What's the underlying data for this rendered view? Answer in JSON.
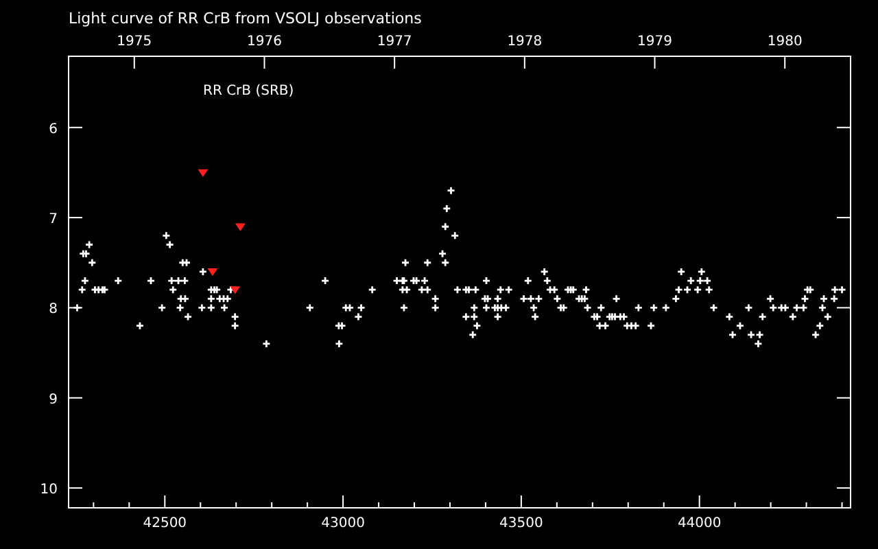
{
  "chart_data": {
    "type": "scatter",
    "title": "Light curve of RR CrB from VSOLJ observations",
    "annotations": [
      "RR CrB (SRB)"
    ],
    "xlim": [
      42230,
      44424
    ],
    "ylim": [
      10.22,
      5.21
    ],
    "xticks": [
      {
        "value": 42300,
        "label": null
      },
      {
        "value": 42400,
        "label": null
      },
      42500,
      {
        "value": 42600,
        "label": null
      },
      {
        "value": 42700,
        "label": null
      },
      {
        "value": 42800,
        "label": null
      },
      {
        "value": 42900,
        "label": null
      },
      43000,
      {
        "value": 43100,
        "label": null
      },
      {
        "value": 43200,
        "label": null
      },
      {
        "value": 43300,
        "label": null
      },
      {
        "value": 43400,
        "label": null
      },
      43500,
      {
        "value": 43600,
        "label": null
      },
      {
        "value": 43700,
        "label": null
      },
      {
        "value": 43800,
        "label": null
      },
      {
        "value": 43900,
        "label": null
      },
      44000,
      {
        "value": 44100,
        "label": null
      },
      {
        "value": 44200,
        "label": null
      },
      {
        "value": 44300,
        "label": null
      },
      {
        "value": 44400,
        "label": null
      }
    ],
    "yticks": [
      6,
      7,
      8,
      9,
      10
    ],
    "x2lim": [
      1974.495,
      1980.505
    ],
    "x2ticks": [
      1975,
      1976,
      1977,
      1978,
      1979,
      1980
    ],
    "grid": false,
    "series": [
      {
        "color": "#ffffff",
        "marker": "cross",
        "x": [
          42288,
          42271,
          42279,
          42296,
          42276,
          42268,
          42304,
          42314,
          42325,
          42331,
          42254,
          42369,
          42461,
          42430,
          42504,
          42514,
          42550,
          42561,
          42607,
          42519,
          42538,
          42556,
          42523,
          42492,
          42545,
          42557,
          42543,
          42565,
          42604,
          42630,
          42639,
          42646,
          42685,
          42630,
          42654,
          42665,
          42676,
          42630,
          42667,
          42697,
          42697,
          42785,
          42907,
          42950,
          42988,
          42997,
          42989,
          43008,
          43019,
          43051,
          43043,
          43082,
          43151,
          43167,
          43171,
          43175,
          43167,
          43179,
          43198,
          43206,
          43171,
          43221,
          43237,
          43229,
          43237,
          43259,
          43259,
          43279,
          43287,
          43287,
          43291,
          43303,
          43314,
          43321,
          43345,
          43353,
          43372,
          43345,
          43368,
          43368,
          43376,
          43364,
          43402,
          43398,
          43406,
          43402,
          43434,
          43426,
          43434,
          43444,
          43457,
          43434,
          43442,
          43465,
          43519,
          43507,
          43527,
          43549,
          43535,
          43539,
          43565,
          43573,
          43581,
          43593,
          43601,
          43611,
          43619,
          43631,
          43639,
          43646,
          43682,
          43662,
          43670,
          43678,
          43686,
          43705,
          43713,
          43724,
          43720,
          43736,
          43748,
          43755,
          43763,
          43778,
          43788,
          43767,
          43797,
          43809,
          43821,
          43829,
          43864,
          43872,
          43906,
          43934,
          43942,
          43949,
          43966,
          43976,
          43995,
          44006,
          44002,
          44022,
          44027,
          44040,
          44084,
          44093,
          44114,
          44138,
          44145,
          44165,
          44169,
          44177,
          44199,
          44207,
          44230,
          44241,
          44262,
          44273,
          44292,
          44296,
          44303,
          44311,
          44326,
          44338,
          44345,
          44349,
          44360,
          44378,
          44380,
          44400
        ],
        "values": [
          7.3,
          7.4,
          7.4,
          7.5,
          7.7,
          7.8,
          7.8,
          7.8,
          7.8,
          7.8,
          8.0,
          7.7,
          7.7,
          8.2,
          7.2,
          7.3,
          7.5,
          7.5,
          7.6,
          7.7,
          7.7,
          7.7,
          7.8,
          8.0,
          7.9,
          7.9,
          8.0,
          8.1,
          8.0,
          7.8,
          7.8,
          7.8,
          7.8,
          7.9,
          7.9,
          7.9,
          7.9,
          8.0,
          8.0,
          8.1,
          8.2,
          8.4,
          8.0,
          7.7,
          8.2,
          8.2,
          8.4,
          8.0,
          8.0,
          8.0,
          8.1,
          7.8,
          7.7,
          7.7,
          7.7,
          7.5,
          7.8,
          7.8,
          7.7,
          7.7,
          8.0,
          7.8,
          7.8,
          7.7,
          7.5,
          7.9,
          8.0,
          7.4,
          7.5,
          7.1,
          6.9,
          6.7,
          7.2,
          7.8,
          7.8,
          7.8,
          7.8,
          8.1,
          8.1,
          8.0,
          8.2,
          8.3,
          7.7,
          7.9,
          7.9,
          8.0,
          7.9,
          8.0,
          8.0,
          8.0,
          8.0,
          8.1,
          7.8,
          7.8,
          7.7,
          7.9,
          7.9,
          7.9,
          8.0,
          8.1,
          7.6,
          7.7,
          7.8,
          7.8,
          7.9,
          8.0,
          8.0,
          7.8,
          7.8,
          7.8,
          7.8,
          7.9,
          7.9,
          7.9,
          8.0,
          8.1,
          8.1,
          8.0,
          8.2,
          8.2,
          8.1,
          8.1,
          8.1,
          8.1,
          8.1,
          7.9,
          8.2,
          8.2,
          8.2,
          8.0,
          8.2,
          8.0,
          8.0,
          7.9,
          7.8,
          7.6,
          7.8,
          7.7,
          7.8,
          7.6,
          7.7,
          7.7,
          7.8,
          8.0,
          8.1,
          8.3,
          8.2,
          8.0,
          8.3,
          8.4,
          8.3,
          8.1,
          7.9,
          8.0,
          8.0,
          8.0,
          8.1,
          8.0,
          8.0,
          7.9,
          7.8,
          7.8,
          8.3,
          8.2,
          8.0,
          7.9,
          8.1,
          7.9,
          7.8,
          7.8
        ]
      },
      {
        "color": "#ff2020",
        "marker": "triangle",
        "x": [
          42607,
          42712,
          42634,
          42697
        ],
        "values": [
          6.5,
          7.1,
          7.6,
          7.8
        ]
      }
    ]
  }
}
